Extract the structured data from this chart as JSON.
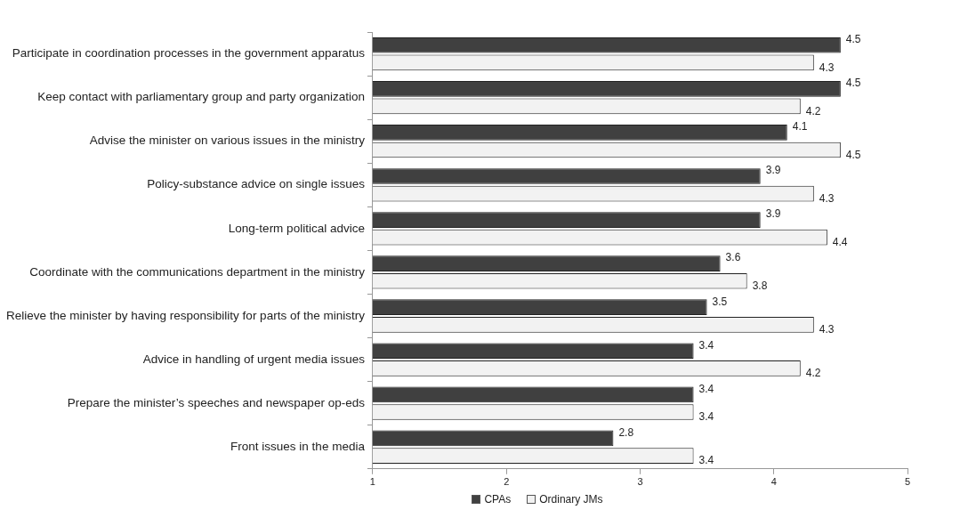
{
  "chart_data": {
    "type": "bar",
    "orientation": "horizontal",
    "categories": [
      "Participate in coordination processes in the government apparatus",
      "Keep contact with parliamentary group and party organization",
      "Advise the minister on various issues in the ministry",
      "Policy-substance advice on single issues",
      "Long-term political advice",
      "Coordinate with the communications department in the ministry",
      "Relieve the minister by having responsibility for parts of the ministry",
      "Advice in handling of urgent media issues",
      "Prepare the minister’s speeches and newspaper op-eds",
      "Front issues in the media"
    ],
    "series": [
      {
        "name": "CPAs",
        "color": "#404040",
        "values": [
          4.5,
          4.5,
          4.1,
          3.9,
          3.9,
          3.6,
          3.5,
          3.4,
          3.4,
          2.8
        ]
      },
      {
        "name": "Ordinary JMs",
        "color": "#f2f2f2",
        "values": [
          4.3,
          4.2,
          4.5,
          4.3,
          4.4,
          3.8,
          4.3,
          4.2,
          3.4,
          3.4
        ]
      }
    ],
    "xlim": [
      1,
      5
    ],
    "xticks": [
      1,
      2,
      3,
      4,
      5
    ],
    "data_labels": true,
    "grid": false,
    "legend": "bottom"
  }
}
